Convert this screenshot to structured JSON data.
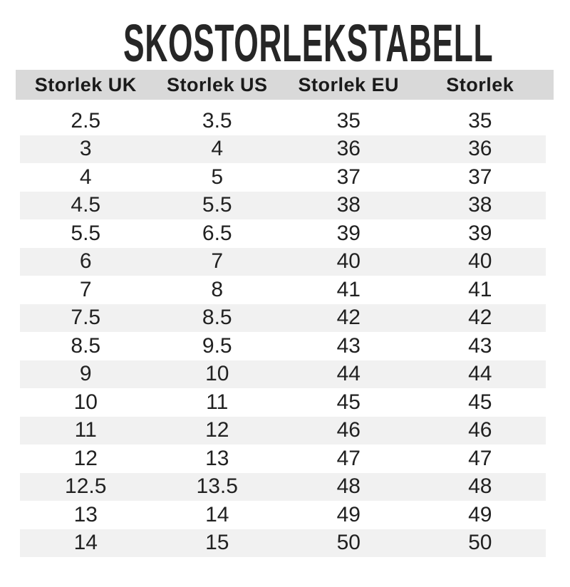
{
  "title": "SKOSTORLEKSTABELL",
  "chart_data": {
    "type": "table",
    "title": "SKOSTORLEKSTABELL",
    "columns": [
      "Storlek UK",
      "Storlek US",
      "Storlek EU",
      "Storlek"
    ],
    "rows": [
      [
        "2.5",
        "3.5",
        "35",
        "35"
      ],
      [
        "3",
        "4",
        "36",
        "36"
      ],
      [
        "4",
        "5",
        "37",
        "37"
      ],
      [
        "4.5",
        "5.5",
        "38",
        "38"
      ],
      [
        "5.5",
        "6.5",
        "39",
        "39"
      ],
      [
        "6",
        "7",
        "40",
        "40"
      ],
      [
        "7",
        "8",
        "41",
        "41"
      ],
      [
        "7.5",
        "8.5",
        "42",
        "42"
      ],
      [
        "8.5",
        "9.5",
        "43",
        "43"
      ],
      [
        "9",
        "10",
        "44",
        "44"
      ],
      [
        "10",
        "11",
        "45",
        "45"
      ],
      [
        "11",
        "12",
        "46",
        "46"
      ],
      [
        "12",
        "13",
        "47",
        "47"
      ],
      [
        "12.5",
        "13.5",
        "48",
        "48"
      ],
      [
        "13",
        "14",
        "49",
        "49"
      ],
      [
        "14",
        "15",
        "50",
        "50"
      ]
    ],
    "layout": {
      "stripe_pattern": "even-rows-shaded",
      "header_background": "#d9d9d9",
      "stripe_background": "#f1f1f1"
    }
  },
  "colors": {
    "header_bg": "#d9d9d9",
    "stripe_bg": "#f1f1f1",
    "text": "#212121",
    "title": "#262626"
  }
}
